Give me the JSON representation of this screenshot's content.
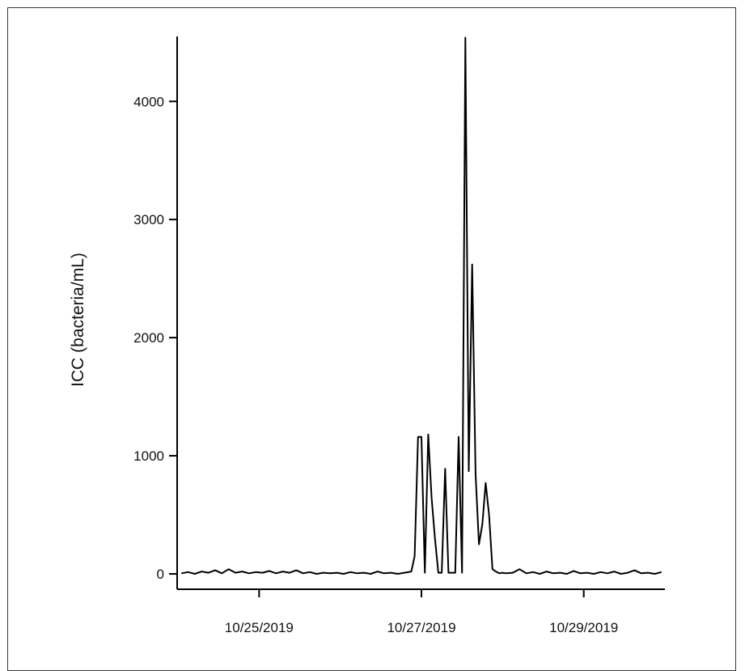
{
  "chart_data": {
    "type": "line",
    "title": "",
    "xlabel": "",
    "ylabel": "ICC (bacteria/mL)",
    "xlim": [
      "10/24/2019 00:00",
      "10/30/2019 00:00"
    ],
    "ylim": [
      -130,
      4550
    ],
    "y_ticks": [
      0,
      1000,
      2000,
      3000,
      4000
    ],
    "y_tick_labels": [
      "0",
      "1000",
      "2000",
      "3000",
      "4000"
    ],
    "x_ticks": [
      "10/25/2019",
      "10/27/2019",
      "10/29/2019"
    ],
    "x_tick_labels": [
      "10/25/2019",
      "10/27/2019",
      "10/29/2019"
    ],
    "grid": false,
    "legend": "none",
    "line_color": "#000000",
    "series": [
      {
        "x": [
          "10/24/2019 01:00",
          "10/24/2019 03:00",
          "10/24/2019 05:00",
          "10/24/2019 07:00",
          "10/24/2019 09:00",
          "10/24/2019 11:00",
          "10/24/2019 13:00",
          "10/24/2019 15:00",
          "10/24/2019 17:00",
          "10/24/2019 19:00",
          "10/24/2019 21:00",
          "10/24/2019 23:00",
          "10/25/2019 01:00",
          "10/25/2019 03:00",
          "10/25/2019 05:00",
          "10/25/2019 07:00",
          "10/25/2019 09:00",
          "10/25/2019 11:00",
          "10/25/2019 13:00",
          "10/25/2019 15:00",
          "10/25/2019 17:00",
          "10/25/2019 19:00",
          "10/25/2019 21:00",
          "10/25/2019 23:00",
          "10/26/2019 01:00",
          "10/26/2019 03:00",
          "10/26/2019 05:00",
          "10/26/2019 07:00",
          "10/26/2019 09:00",
          "10/26/2019 11:00",
          "10/26/2019 13:00",
          "10/26/2019 15:00",
          "10/26/2019 17:00",
          "10/26/2019 19:00",
          "10/26/2019 21:00",
          "10/26/2019 22:00",
          "10/26/2019 23:00",
          "10/27/2019 00:00",
          "10/27/2019 01:00",
          "10/27/2019 02:00",
          "10/27/2019 03:00",
          "10/27/2019 04:00",
          "10/27/2019 05:00",
          "10/27/2019 06:00",
          "10/27/2019 07:00",
          "10/27/2019 08:00",
          "10/27/2019 09:00",
          "10/27/2019 10:00",
          "10/27/2019 11:00",
          "10/27/2019 12:00",
          "10/27/2019 13:00",
          "10/27/2019 14:00",
          "10/27/2019 15:00",
          "10/27/2019 16:00",
          "10/27/2019 17:00",
          "10/27/2019 18:00",
          "10/27/2019 19:00",
          "10/27/2019 20:00",
          "10/27/2019 21:00",
          "10/27/2019 22:00",
          "10/27/2019 23:00",
          "10/28/2019 00:00",
          "10/28/2019 01:00",
          "10/28/2019 03:00",
          "10/28/2019 05:00",
          "10/28/2019 07:00",
          "10/28/2019 09:00",
          "10/28/2019 11:00",
          "10/28/2019 13:00",
          "10/28/2019 15:00",
          "10/28/2019 17:00",
          "10/28/2019 19:00",
          "10/28/2019 21:00",
          "10/28/2019 23:00",
          "10/29/2019 01:00",
          "10/29/2019 03:00",
          "10/29/2019 05:00",
          "10/29/2019 07:00",
          "10/29/2019 09:00",
          "10/29/2019 11:00",
          "10/29/2019 13:00",
          "10/29/2019 15:00",
          "10/29/2019 17:00",
          "10/29/2019 19:00",
          "10/29/2019 21:00",
          "10/29/2019 23:00"
        ],
        "values": [
          5,
          15,
          0,
          20,
          10,
          30,
          5,
          40,
          10,
          20,
          5,
          15,
          10,
          25,
          5,
          20,
          10,
          30,
          5,
          15,
          0,
          10,
          5,
          10,
          0,
          15,
          5,
          10,
          0,
          20,
          5,
          10,
          0,
          10,
          20,
          150,
          1160,
          1160,
          10,
          1180,
          650,
          300,
          10,
          10,
          890,
          10,
          10,
          10,
          1160,
          10,
          4540,
          870,
          2620,
          850,
          250,
          420,
          770,
          500,
          40,
          20,
          5,
          10,
          5,
          10,
          40,
          5,
          15,
          0,
          20,
          5,
          10,
          0,
          25,
          5,
          10,
          0,
          15,
          5,
          20,
          0,
          10,
          30,
          5,
          10,
          0,
          15
        ]
      }
    ]
  }
}
